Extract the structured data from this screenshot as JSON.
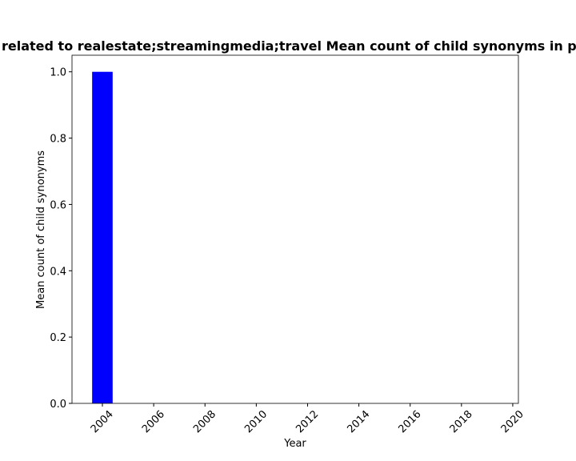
{
  "chart_data": {
    "type": "bar",
    "title": "related to realestate;streamingmedia;travel Mean count of child synonyms in p",
    "x_label": "Year",
    "y_label": "Mean count of child synonyms",
    "x": [
      2004
    ],
    "values": [
      1
    ],
    "color": "#0000ff",
    "xlim": [
      2002.815,
      2020.22
    ],
    "xticks": [
      2004,
      2006,
      2008,
      2010,
      2012,
      2014,
      2016,
      2018,
      2020
    ],
    "ylim": [
      0,
      1.05
    ],
    "yticks": [
      {
        "value": 0,
        "label": "0.0"
      },
      {
        "value": 0.2,
        "label": "0.2"
      },
      {
        "value": 0.4,
        "label": "0.4"
      },
      {
        "value": 0.6,
        "label": "0.6"
      },
      {
        "value": 0.8,
        "label": "0.8"
      },
      {
        "value": 1,
        "label": "1.0"
      }
    ]
  }
}
